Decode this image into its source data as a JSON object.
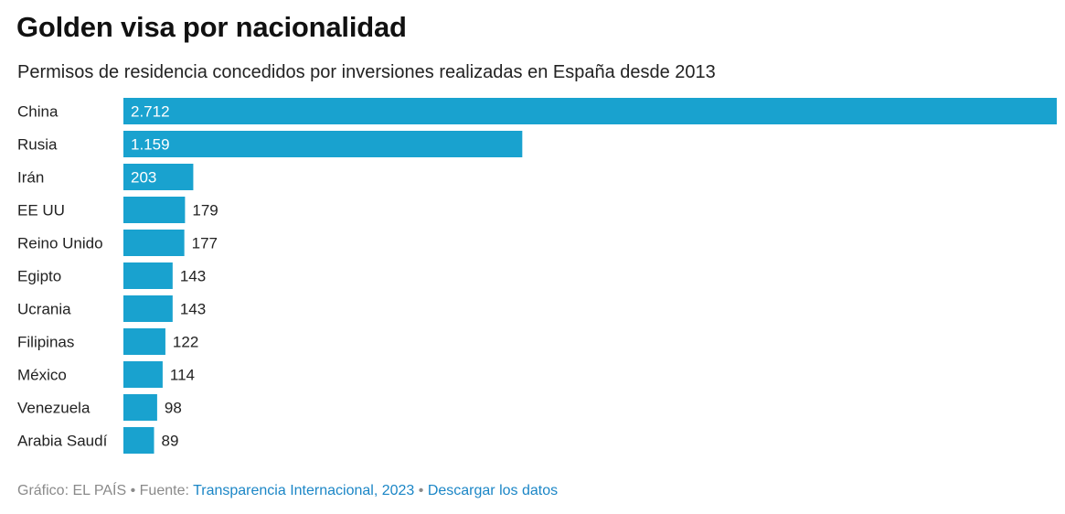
{
  "header": {
    "title": "Golden visa por nacionalidad",
    "subtitle": "Permisos de residencia concedidos por inversiones realizadas en España desde 2013"
  },
  "footer": {
    "credit": "Gráfico: EL PAÍS",
    "separator_1": " • ",
    "source_prefix": "Fuente: ",
    "source_link": "Transparencia Internacional, 2023",
    "separator_2": " • ",
    "download_link": "Descargar los datos"
  },
  "colors": {
    "bar": "#19a2cf",
    "link": "#1b86c6"
  },
  "chart_data": {
    "type": "bar",
    "orientation": "horizontal",
    "title": "Golden visa por nacionalidad",
    "subtitle": "Permisos de residencia concedidos por inversiones realizadas en España desde 2013",
    "categories": [
      "China",
      "Rusia",
      "Irán",
      "EE UU",
      "Reino Unido",
      "Egipto",
      "Ucrania",
      "Filipinas",
      "México",
      "Venezuela",
      "Arabia Saudí"
    ],
    "values": [
      2712,
      1159,
      203,
      179,
      177,
      143,
      143,
      122,
      114,
      98,
      89
    ],
    "value_labels": [
      "2.712",
      "1.159",
      "203",
      "179",
      "177",
      "143",
      "143",
      "122",
      "114",
      "98",
      "89"
    ],
    "xlim": [
      0,
      2712
    ],
    "grid": false,
    "legend": "none"
  }
}
